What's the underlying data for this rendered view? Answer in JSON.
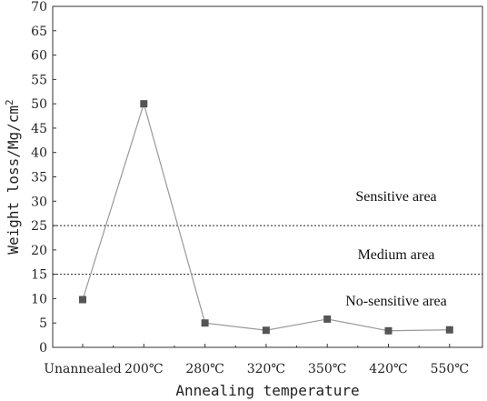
{
  "chart_data": {
    "type": "line",
    "title": "",
    "xlabel": "Annealing temperature",
    "ylabel_main": "Weight loss/Mg/cm",
    "ylabel_sup": "2",
    "categories": [
      "Unannealed",
      "200℃",
      "280℃",
      "320℃",
      "350℃",
      "420℃",
      "550℃"
    ],
    "series": [
      {
        "values": [
          9.8,
          50,
          5,
          3.5,
          5.8,
          3.4,
          3.6
        ]
      }
    ],
    "ylim": [
      0,
      70
    ],
    "yticks": [
      0,
      5,
      10,
      15,
      20,
      25,
      30,
      35,
      40,
      45,
      50,
      55,
      60,
      65,
      70
    ],
    "thresholds": [
      15,
      25
    ],
    "regions": [
      {
        "label": "Sensitive area",
        "y": 31
      },
      {
        "label": "Medium area",
        "y": 19
      },
      {
        "label": "No-sensitive area",
        "y": 9.5
      }
    ],
    "grid": false,
    "legend": "none",
    "colors": {
      "line": "#999999",
      "marker": "#555555",
      "axis": "#333333"
    }
  }
}
